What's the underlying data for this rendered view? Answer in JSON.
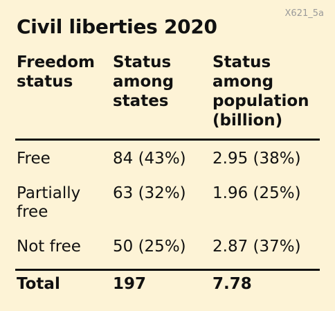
{
  "figure_code": "X621_5a",
  "chart_data": {
    "type": "table",
    "title": "Civil liberties 2020",
    "columns": [
      "Freedom status",
      "Status among states",
      "Status among population (billion)"
    ],
    "rows": [
      {
        "status": "Free",
        "states": "84 (43%)",
        "population": "2.95 (38%)"
      },
      {
        "status": "Partially free",
        "states": "63 (32%)",
        "population": "1.96 (25%)"
      },
      {
        "status": "Not free",
        "states": "50 (25%)",
        "population": "2.87 (37%)"
      }
    ],
    "total": {
      "label": "Total",
      "states": "197",
      "population": "7.78"
    }
  }
}
